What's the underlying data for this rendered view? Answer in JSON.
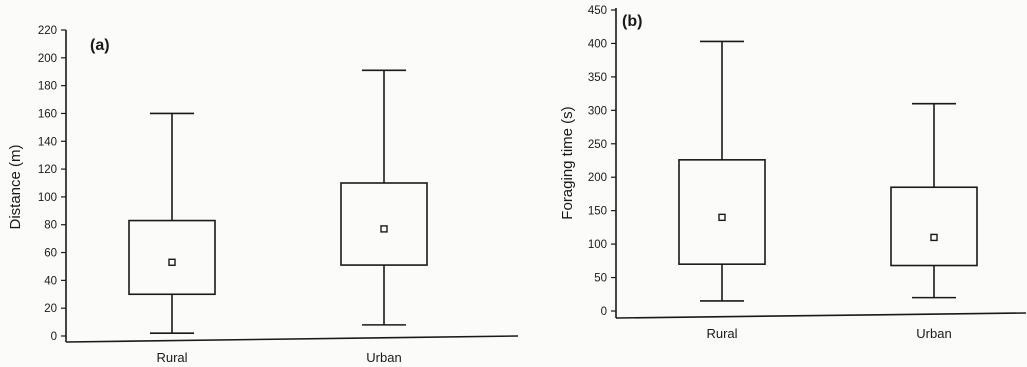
{
  "chart_data": [
    {
      "type": "box",
      "panel_label": "(a)",
      "ylabel": "Distance (m)",
      "ylim": [
        0,
        220
      ],
      "yticks": [
        0,
        20,
        40,
        60,
        80,
        100,
        120,
        140,
        160,
        180,
        200,
        220
      ],
      "categories": [
        "Rural",
        "Urban"
      ],
      "boxes": [
        {
          "category": "Rural",
          "whisker_low": 2,
          "q1": 30,
          "q3": 83,
          "whisker_high": 160,
          "mean": 53
        },
        {
          "category": "Urban",
          "whisker_low": 8,
          "q1": 51,
          "q3": 110,
          "whisker_high": 191,
          "mean": 77
        }
      ]
    },
    {
      "type": "box",
      "panel_label": "(b)",
      "ylabel": "Foraging time (s)",
      "ylim": [
        0,
        450
      ],
      "yticks": [
        0,
        50,
        100,
        150,
        200,
        250,
        300,
        350,
        400,
        450
      ],
      "categories": [
        "Rural",
        "Urban"
      ],
      "boxes": [
        {
          "category": "Rural",
          "whisker_low": 15,
          "q1": 70,
          "q3": 226,
          "whisker_high": 403,
          "mean": 140
        },
        {
          "category": "Urban",
          "whisker_low": 20,
          "q1": 68,
          "q3": 185,
          "whisker_high": 310,
          "mean": 110
        }
      ]
    }
  ]
}
